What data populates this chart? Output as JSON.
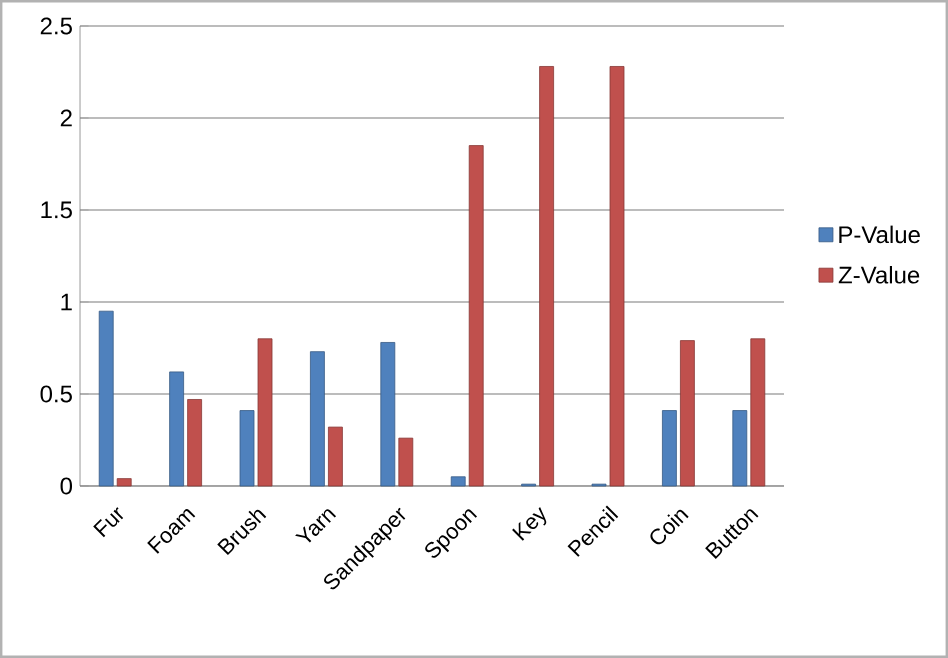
{
  "chart_data": {
    "type": "bar",
    "categories": [
      "Fur",
      "Foam",
      "Brush",
      "Yarn",
      "Sandpaper",
      "Spoon",
      "Key",
      "Pencil",
      "Coin",
      "Button"
    ],
    "series": [
      {
        "name": "P-Value",
        "color": "#4f81bd",
        "values": [
          0.95,
          0.62,
          0.41,
          0.73,
          0.78,
          0.05,
          0.01,
          0.01,
          0.41,
          0.41
        ]
      },
      {
        "name": "Z-Value",
        "color": "#c0504d",
        "values": [
          0.04,
          0.47,
          0.8,
          0.32,
          0.26,
          1.85,
          2.28,
          2.28,
          0.79,
          0.8
        ]
      }
    ],
    "ylim": [
      0,
      2.5
    ],
    "yticks": [
      0,
      0.5,
      1,
      1.5,
      2,
      2.5
    ],
    "grid": "y",
    "legend": "right"
  }
}
